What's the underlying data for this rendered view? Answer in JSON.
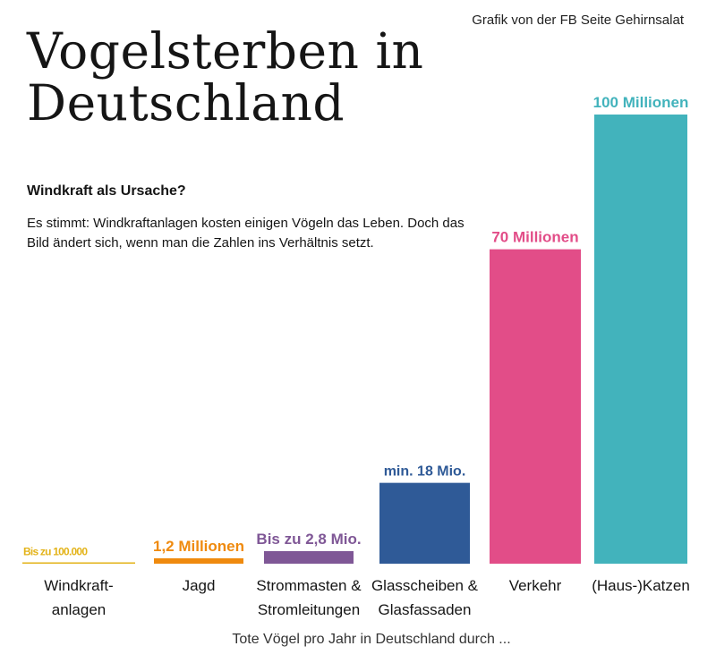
{
  "header": {
    "credit": "Grafik von der FB Seite Gehirnsalat",
    "title": "Vogelsterben in Deutschland",
    "subtitle": "Windkraft als Ursache?",
    "intro": "Es stimmt: Windkraftanlagen kosten einigen Vögeln das Leben. Doch das Bild ändert sich, wenn man die Zahlen ins Verhältnis setzt."
  },
  "chart_data": {
    "type": "bar",
    "categories": [
      [
        "Windkraft-",
        "anlagen"
      ],
      [
        "Jagd"
      ],
      [
        "Strommasten &",
        "Stromleitungen"
      ],
      [
        "Glasscheiben &",
        "Glasfassaden"
      ],
      [
        "Verkehr"
      ],
      [
        "(Haus-)Katzen"
      ]
    ],
    "values": [
      100000,
      1200000,
      2800000,
      18000000,
      70000000,
      100000000
    ],
    "value_labels": [
      "Bis zu 100.000",
      "1,2 Millionen",
      "Bis zu 2,8 Mio.",
      "min. 18 Mio.",
      "70 Millionen",
      "100 Millionen"
    ],
    "colors": [
      "#e3b319",
      "#ef8a0e",
      "#7f5796",
      "#2f5a97",
      "#e24d88",
      "#42b3bc"
    ],
    "xlabel": "Tote Vögel pro Jahr in Deutschland durch ...",
    "ylabel": "",
    "ylim": [
      0,
      100000000
    ],
    "grid": false,
    "legend": "none"
  }
}
